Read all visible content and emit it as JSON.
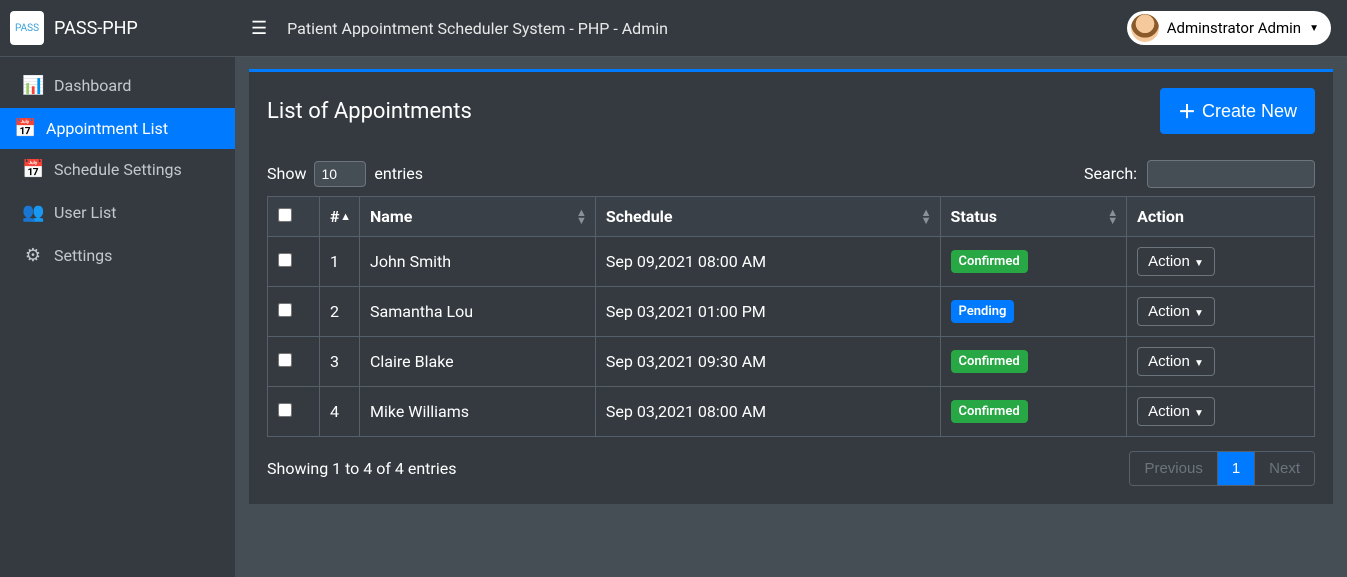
{
  "brand": {
    "name": "PASS-PHP",
    "logo_text": "PASS"
  },
  "sidebar": {
    "items": [
      {
        "label": "Dashboard",
        "icon": "dashboard-icon",
        "glyph": "📊"
      },
      {
        "label": "Appointment List",
        "icon": "calendar-icon",
        "glyph": "📅",
        "active": true
      },
      {
        "label": "Schedule Settings",
        "icon": "calendar-icon",
        "glyph": "📅"
      },
      {
        "label": "User List",
        "icon": "users-icon",
        "glyph": "👥"
      },
      {
        "label": "Settings",
        "icon": "gear-icon",
        "glyph": "⚙"
      }
    ]
  },
  "topbar": {
    "title": "Patient Appointment Scheduler System - PHP - Admin",
    "user_name": "Adminstrator Admin"
  },
  "page": {
    "title": "List of Appointments",
    "create_label": "Create New"
  },
  "datatable": {
    "length_prefix": "Show",
    "length_value": "10",
    "length_suffix": "entries",
    "search_label": "Search:",
    "columns": [
      {
        "label": "",
        "type": "checkbox"
      },
      {
        "label": "#",
        "sort": "asc"
      },
      {
        "label": "Name",
        "sort": "both"
      },
      {
        "label": "Schedule",
        "sort": "both"
      },
      {
        "label": "Status",
        "sort": "both"
      },
      {
        "label": "Action"
      }
    ],
    "rows": [
      {
        "num": "1",
        "name": "John Smith",
        "schedule": "Sep 09,2021 08:00 AM",
        "status": "Confirmed",
        "status_color": "#28a745"
      },
      {
        "num": "2",
        "name": "Samantha Lou",
        "schedule": "Sep 03,2021 01:00 PM",
        "status": "Pending",
        "status_color": "#007bff"
      },
      {
        "num": "3",
        "name": "Claire Blake",
        "schedule": "Sep 03,2021 09:30 AM",
        "status": "Confirmed",
        "status_color": "#28a745"
      },
      {
        "num": "4",
        "name": "Mike Williams",
        "schedule": "Sep 03,2021 08:00 AM",
        "status": "Confirmed",
        "status_color": "#28a745"
      }
    ],
    "action_label": "Action",
    "info": "Showing 1 to 4 of 4 entries",
    "pager": {
      "prev": "Previous",
      "pages": [
        "1"
      ],
      "active": "1",
      "next": "Next"
    }
  },
  "colors": {
    "primary": "#007bff",
    "success": "#28a745",
    "sidebar_bg": "#343a40",
    "body_bg": "#454d55"
  }
}
